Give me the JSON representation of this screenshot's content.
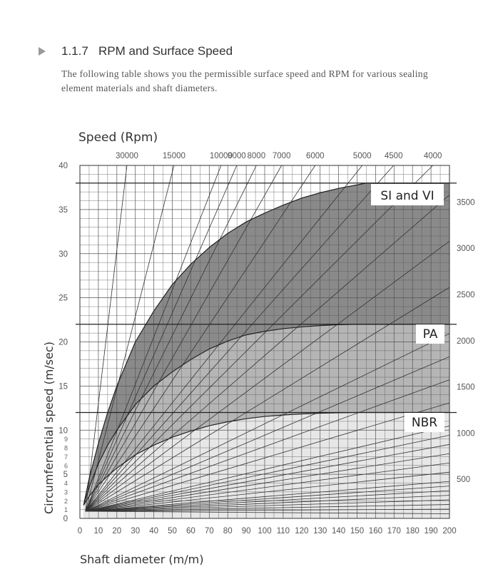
{
  "section": {
    "number": "1.1.7",
    "title": "RPM and Surface Speed",
    "intro": "The following table shows you the permissible surface speed and RPM for various sealing element materials and shaft diameters."
  },
  "chart_data": {
    "type": "line",
    "top_axis_title": "Speed (Rpm)",
    "xlabel": "Shaft diameter (m/m)",
    "ylabel": "Circumferential speed (m/sec)",
    "xlim": [
      0,
      200
    ],
    "ylim": [
      0,
      40
    ],
    "x_ticks": [
      0,
      10,
      20,
      30,
      40,
      50,
      60,
      70,
      80,
      90,
      100,
      110,
      120,
      130,
      140,
      150,
      160,
      170,
      180,
      190,
      200
    ],
    "y_ticks_major": [
      0,
      5,
      10,
      15,
      20,
      25,
      30,
      35,
      40
    ],
    "y_ticks_minor_labeled": [
      1,
      2,
      3,
      4,
      6,
      7,
      8,
      9
    ],
    "rpm_lines": [
      50,
      100,
      150,
      200,
      250,
      300,
      350,
      400,
      500,
      600,
      700,
      800,
      900,
      1000,
      1250,
      1500,
      1750,
      2000,
      2500,
      3000,
      3500,
      4000,
      4500,
      5000,
      6000,
      7000,
      8000,
      9000,
      10000,
      15000,
      30000
    ],
    "top_rpm_labels": [
      {
        "rpm": 30000,
        "text": "30000"
      },
      {
        "rpm": 15000,
        "text": "15000"
      },
      {
        "rpm": 10000,
        "text": "10000"
      },
      {
        "rpm": 9000,
        "text": "9000"
      },
      {
        "rpm": 8000,
        "text": "8000"
      },
      {
        "rpm": 7000,
        "text": "7000"
      },
      {
        "rpm": 6000,
        "text": "6000"
      },
      {
        "rpm": 5000,
        "text": "5000"
      },
      {
        "rpm": 4500,
        "text": "4500"
      },
      {
        "rpm": 4000,
        "text": "4000"
      }
    ],
    "right_rpm_labels": [
      {
        "rpm": 3500,
        "text": "3500"
      },
      {
        "rpm": 3000,
        "text": "3000"
      },
      {
        "rpm": 2500,
        "text": "2500"
      },
      {
        "rpm": 2000,
        "text": "2000"
      },
      {
        "rpm": 1500,
        "text": "1500"
      },
      {
        "rpm": 1000,
        "text": "1000"
      },
      {
        "rpm": 500,
        "text": "500"
      }
    ],
    "series": [
      {
        "name": "SI and VI",
        "fill": "#8a8a8a",
        "limit_speed": 38,
        "x": [
          2,
          5,
          10,
          15,
          20,
          30,
          40,
          50,
          60,
          70,
          80,
          90,
          100,
          110,
          120,
          130,
          140,
          150,
          155,
          200
        ],
        "y": [
          1.5,
          4.5,
          8.5,
          12,
          15,
          20,
          23.5,
          26.5,
          28.8,
          30.7,
          32.3,
          33.6,
          34.6,
          35.5,
          36.3,
          36.9,
          37.4,
          37.8,
          38,
          38
        ]
      },
      {
        "name": "PA",
        "fill": "#b5b5b5",
        "limit_speed": 22,
        "x": [
          2,
          5,
          10,
          15,
          20,
          30,
          40,
          50,
          60,
          70,
          80,
          90,
          100,
          110,
          120,
          130,
          140,
          150,
          200
        ],
        "y": [
          1.5,
          3.5,
          6.2,
          8.3,
          10,
          12.9,
          15,
          16.6,
          18,
          19.2,
          20.1,
          20.8,
          21.2,
          21.5,
          21.7,
          21.85,
          21.95,
          22,
          22
        ]
      },
      {
        "name": "NBR",
        "fill": "#e7e7e7",
        "limit_speed": 12,
        "x": [
          2,
          5,
          10,
          15,
          20,
          30,
          40,
          50,
          60,
          70,
          80,
          90,
          100,
          110,
          120,
          130,
          140,
          150,
          200
        ],
        "y": [
          1.5,
          2.5,
          3.8,
          4.8,
          5.7,
          7.2,
          8.3,
          9.2,
          9.9,
          10.5,
          10.95,
          11.3,
          11.55,
          11.72,
          11.84,
          11.92,
          11.97,
          12,
          12
        ]
      }
    ],
    "grid": true
  }
}
